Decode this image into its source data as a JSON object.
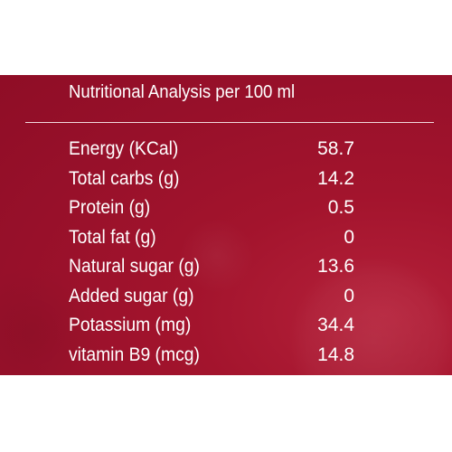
{
  "title": "Nutritional Analysis per 100 ml",
  "rows": [
    {
      "label": "Energy (KCal)",
      "value": "58.7"
    },
    {
      "label": "Total carbs (g)",
      "value": "14.2"
    },
    {
      "label": "Protein (g)",
      "value": "0.5"
    },
    {
      "label": "Total fat (g)",
      "value": "0"
    },
    {
      "label": "Natural sugar (g)",
      "value": "13.6"
    },
    {
      "label": "Added sugar (g)",
      "value": "0"
    },
    {
      "label": "Potassium (mg)",
      "value": "34.4"
    },
    {
      "label": "vitamin B9 (mcg)",
      "value": "14.8"
    }
  ],
  "colors": {
    "panel": "#9a112b",
    "text": "#ffffff"
  }
}
